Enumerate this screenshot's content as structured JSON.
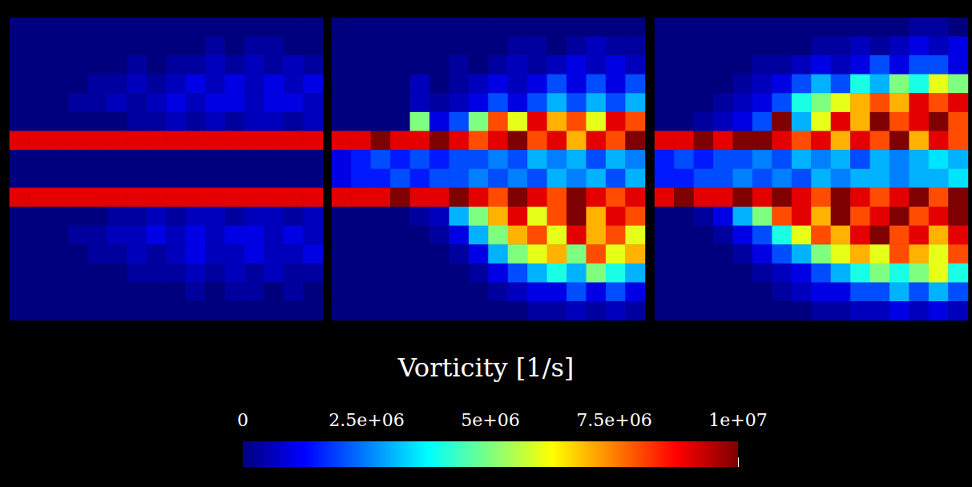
{
  "chart_data": {
    "type": "heatmap",
    "panels": [
      {
        "cells": [
          [
            0,
            0,
            0,
            0,
            0,
            0,
            0,
            0,
            0,
            0,
            0,
            0,
            0,
            0,
            0,
            0
          ],
          [
            0,
            0,
            0,
            0,
            0,
            0,
            0,
            0,
            0,
            0,
            300000.0,
            0,
            300000.0,
            300000.0,
            0,
            0
          ],
          [
            0,
            0,
            0,
            0,
            0,
            0,
            300000.0,
            0,
            300000.0,
            300000.0,
            600000.0,
            300000.0,
            600000.0,
            300000.0,
            600000.0,
            300000.0
          ],
          [
            0,
            0,
            0,
            0,
            300000.0,
            300000.0,
            600000.0,
            300000.0,
            600000.0,
            1000000.0,
            600000.0,
            1000000.0,
            600000.0,
            1000000.0,
            600000.0,
            1000000.0
          ],
          [
            0,
            0,
            0,
            300000.0,
            300000.0,
            600000.0,
            300000.0,
            600000.0,
            1000000.0,
            600000.0,
            1000000.0,
            1000000.0,
            600000.0,
            1000000.0,
            1000000.0,
            600000.0
          ],
          [
            0,
            0,
            0,
            0,
            0,
            0,
            300000.0,
            300000.0,
            600000.0,
            300000.0,
            600000.0,
            300000.0,
            600000.0,
            600000.0,
            300000.0,
            600000.0
          ],
          [
            9000000.0,
            9000000.0,
            9000000.0,
            9000000.0,
            9000000.0,
            9000000.0,
            9000000.0,
            9000000.0,
            9000000.0,
            9000000.0,
            9000000.0,
            9000000.0,
            9000000.0,
            9000000.0,
            9000000.0,
            9000000.0
          ],
          [
            0,
            0,
            0,
            0,
            0,
            0,
            0,
            0,
            0,
            0,
            0,
            0,
            0,
            0,
            0,
            0
          ],
          [
            0,
            0,
            0,
            0,
            0,
            0,
            0,
            0,
            0,
            0,
            0,
            0,
            0,
            0,
            0,
            0
          ],
          [
            9000000.0,
            9000000.0,
            9000000.0,
            9000000.0,
            9000000.0,
            9000000.0,
            9000000.0,
            9000000.0,
            9000000.0,
            9000000.0,
            9000000.0,
            9000000.0,
            9000000.0,
            9000000.0,
            9000000.0,
            9000000.0
          ],
          [
            0,
            0,
            0,
            0,
            0,
            300000.0,
            300000.0,
            600000.0,
            300000.0,
            600000.0,
            600000.0,
            300000.0,
            600000.0,
            600000.0,
            300000.0,
            600000.0
          ],
          [
            0,
            0,
            0,
            300000.0,
            300000.0,
            600000.0,
            600000.0,
            1000000.0,
            600000.0,
            1000000.0,
            600000.0,
            1000000.0,
            1000000.0,
            600000.0,
            1000000.0,
            600000.0
          ],
          [
            0,
            0,
            0,
            0,
            300000.0,
            300000.0,
            600000.0,
            300000.0,
            600000.0,
            1000000.0,
            600000.0,
            600000.0,
            1000000.0,
            600000.0,
            600000.0,
            1000000.0
          ],
          [
            0,
            0,
            0,
            0,
            0,
            0,
            300000.0,
            300000.0,
            300000.0,
            600000.0,
            300000.0,
            600000.0,
            300000.0,
            600000.0,
            300000.0,
            300000.0
          ],
          [
            0,
            0,
            0,
            0,
            0,
            0,
            0,
            0,
            0,
            300000.0,
            0,
            300000.0,
            300000.0,
            0,
            300000.0,
            0
          ],
          [
            0,
            0,
            0,
            0,
            0,
            0,
            0,
            0,
            0,
            0,
            0,
            0,
            0,
            0,
            0,
            0
          ]
        ]
      },
      {
        "cells": [
          [
            0,
            0,
            0,
            0,
            0,
            0,
            0,
            0,
            0,
            0,
            0,
            0,
            0,
            0,
            0,
            0
          ],
          [
            0,
            0,
            0,
            0,
            0,
            0,
            0,
            0,
            0,
            300000.0,
            300000.0,
            0,
            300000.0,
            600000.0,
            300000.0,
            300000.0
          ],
          [
            0,
            0,
            0,
            0,
            0,
            0,
            300000.0,
            0,
            300000.0,
            600000.0,
            300000.0,
            600000.0,
            1000000.0,
            600000.0,
            1000000.0,
            600000.0
          ],
          [
            0,
            0,
            0,
            0,
            600000.0,
            0,
            300000.0,
            600000.0,
            1000000.0,
            600000.0,
            1000000.0,
            2000000.0,
            1000000.0,
            2000000.0,
            1000000.0,
            2000000.0
          ],
          [
            0,
            0,
            0,
            0,
            600000.0,
            300000.0,
            600000.0,
            1000000.0,
            2000000.0,
            1000000.0,
            2000000.0,
            3000000.0,
            2000000.0,
            3000000.0,
            2000000.0,
            3000000.0
          ],
          [
            0,
            0,
            0,
            0,
            5000000.0,
            1000000.0,
            2000000.0,
            5000000.0,
            8000000.0,
            6000000.0,
            9000000.0,
            7000000.0,
            8000000.0,
            6000000.0,
            9000000.0,
            8000000.0
          ],
          [
            9000000.0,
            9000000.0,
            10000000.0,
            9000000.0,
            9000000.0,
            10000000.0,
            9000000.0,
            8000000.0,
            9000000.0,
            10000000.0,
            8000000.0,
            9000000.0,
            7000000.0,
            9000000.0,
            8000000.0,
            10000000.0
          ],
          [
            1000000.0,
            1500000.0,
            2000000.0,
            1500000.0,
            2000000.0,
            1500000.0,
            2000000.0,
            2000000.0,
            2500000.0,
            2000000.0,
            3000000.0,
            2500000.0,
            3000000.0,
            2000000.0,
            3000000.0,
            2500000.0
          ],
          [
            1000000.0,
            1500000.0,
            1500000.0,
            2000000.0,
            1500000.0,
            2000000.0,
            2000000.0,
            2500000.0,
            2000000.0,
            2500000.0,
            2000000.0,
            3000000.0,
            2500000.0,
            3000000.0,
            2000000.0,
            3000000.0
          ],
          [
            9000000.0,
            9000000.0,
            9000000.0,
            10000000.0,
            9000000.0,
            9000000.0,
            10000000.0,
            9000000.0,
            8000000.0,
            10000000.0,
            9000000.0,
            8000000.0,
            10000000.0,
            9000000.0,
            8000000.0,
            9000000.0
          ],
          [
            0,
            0,
            0,
            0,
            300000.0,
            600000.0,
            3000000.0,
            5000000.0,
            7000000.0,
            9000000.0,
            6000000.0,
            8000000.0,
            10000000.0,
            7000000.0,
            9000000.0,
            8000000.0
          ],
          [
            0,
            0,
            0,
            0,
            0,
            300000.0,
            1000000.0,
            3000000.0,
            5000000.0,
            7000000.0,
            8000000.0,
            6000000.0,
            9000000.0,
            7000000.0,
            8000000.0,
            6000000.0
          ],
          [
            0,
            0,
            0,
            0,
            0,
            0,
            300000.0,
            1000000.0,
            3000000.0,
            5000000.0,
            6000000.0,
            7000000.0,
            5000000.0,
            8000000.0,
            6000000.0,
            7000000.0
          ],
          [
            0,
            0,
            0,
            0,
            0,
            0,
            0,
            300000.0,
            1000000.0,
            2000000.0,
            3000000.0,
            4000000.0,
            3000000.0,
            5000000.0,
            4000000.0,
            3000000.0
          ],
          [
            0,
            0,
            0,
            0,
            0,
            0,
            0,
            0,
            300000.0,
            600000.0,
            1000000.0,
            1000000.0,
            2000000.0,
            1000000.0,
            2000000.0,
            1000000.0
          ],
          [
            0,
            0,
            0,
            0,
            0,
            0,
            0,
            0,
            0,
            0,
            300000.0,
            300000.0,
            600000.0,
            300000.0,
            600000.0,
            300000.0
          ]
        ]
      },
      {
        "cells": [
          [
            0,
            0,
            0,
            0,
            0,
            0,
            0,
            0,
            0,
            0,
            0,
            0,
            0,
            300000.0,
            300000.0,
            0
          ],
          [
            0,
            0,
            0,
            0,
            0,
            0,
            0,
            0,
            300000.0,
            300000.0,
            600000.0,
            300000.0,
            600000.0,
            1000000.0,
            600000.0,
            1000000.0
          ],
          [
            0,
            0,
            0,
            0,
            0,
            300000.0,
            300000.0,
            600000.0,
            1000000.0,
            600000.0,
            1000000.0,
            2000000.0,
            1000000.0,
            2000000.0,
            2000000.0,
            1000000.0
          ],
          [
            0,
            0,
            0,
            0,
            300000.0,
            600000.0,
            1000000.0,
            2000000.0,
            3000000.0,
            2000000.0,
            4000000.0,
            3000000.0,
            5000000.0,
            4000000.0,
            6000000.0,
            5000000.0
          ],
          [
            0,
            0,
            0,
            300000.0,
            600000.0,
            1000000.0,
            2000000.0,
            4000000.0,
            5000000.0,
            6000000.0,
            7000000.0,
            8000000.0,
            7000000.0,
            9000000.0,
            8000000.0,
            9000000.0
          ],
          [
            0,
            0,
            300000.0,
            600000.0,
            1000000.0,
            2000000.0,
            10000000.0,
            3000000.0,
            6000000.0,
            9000000.0,
            7000000.0,
            10000000.0,
            8000000.0,
            9000000.0,
            10000000.0,
            8000000.0
          ],
          [
            9000000.0,
            9000000.0,
            10000000.0,
            9000000.0,
            10000000.0,
            10000000.0,
            9000000.0,
            8000000.0,
            9000000.0,
            7000000.0,
            9000000.0,
            8000000.0,
            10000000.0,
            7000000.0,
            9000000.0,
            8000000.0
          ],
          [
            1500000.0,
            2000000.0,
            1500000.0,
            2000000.0,
            2000000.0,
            2500000.0,
            2000000.0,
            3000000.0,
            2500000.0,
            3000000.0,
            2000000.0,
            3000000.0,
            2500000.0,
            3000000.0,
            3500000.0,
            3000000.0
          ],
          [
            1500000.0,
            1500000.0,
            2000000.0,
            2000000.0,
            2500000.0,
            2000000.0,
            2500000.0,
            2000000.0,
            3000000.0,
            2500000.0,
            3000000.0,
            3000000.0,
            2500000.0,
            3000000.0,
            3000000.0,
            3500000.0
          ],
          [
            9000000.0,
            10000000.0,
            9000000.0,
            9000000.0,
            10000000.0,
            9000000.0,
            10000000.0,
            9000000.0,
            8000000.0,
            10000000.0,
            9000000.0,
            8000000.0,
            9000000.0,
            10000000.0,
            8000000.0,
            10000000.0
          ],
          [
            0,
            0,
            300000.0,
            1000000.0,
            3000000.0,
            5000000.0,
            8000000.0,
            9000000.0,
            7000000.0,
            10000000.0,
            8000000.0,
            9000000.0,
            10000000.0,
            8000000.0,
            9000000.0,
            10000000.0
          ],
          [
            0,
            0,
            0,
            300000.0,
            1000000.0,
            2000000.0,
            4000000.0,
            6000000.0,
            8000000.0,
            7000000.0,
            9000000.0,
            10000000.0,
            8000000.0,
            9000000.0,
            7000000.0,
            9000000.0
          ],
          [
            0,
            0,
            0,
            0,
            300000.0,
            1000000.0,
            2000000.0,
            3000000.0,
            5000000.0,
            6000000.0,
            7000000.0,
            6000000.0,
            8000000.0,
            7000000.0,
            6000000.0,
            8000000.0
          ],
          [
            0,
            0,
            0,
            0,
            0,
            300000.0,
            600000.0,
            1000000.0,
            2000000.0,
            3000000.0,
            4000000.0,
            5000000.0,
            4000000.0,
            5000000.0,
            6000000.0,
            4000000.0
          ],
          [
            0,
            0,
            0,
            0,
            0,
            0,
            300000.0,
            600000.0,
            1000000.0,
            1000000.0,
            2000000.0,
            2000000.0,
            3000000.0,
            2000000.0,
            3000000.0,
            2000000.0
          ],
          [
            0,
            0,
            0,
            0,
            0,
            0,
            0,
            0,
            300000.0,
            300000.0,
            600000.0,
            600000.0,
            1000000.0,
            600000.0,
            1000000.0,
            600000.0
          ]
        ]
      }
    ],
    "colorbar": {
      "title": "Vorticity [1/s]",
      "range": [
        0,
        10000000.0
      ],
      "ticks": [
        0,
        {
          "value": 2500000,
          "label": "2.5e+06"
        },
        {
          "value": 5000000,
          "label": "5e+06"
        },
        {
          "value": 7500000,
          "label": "7.5e+06"
        },
        {
          "value": 10000000,
          "label": "1e+07"
        }
      ]
    }
  }
}
